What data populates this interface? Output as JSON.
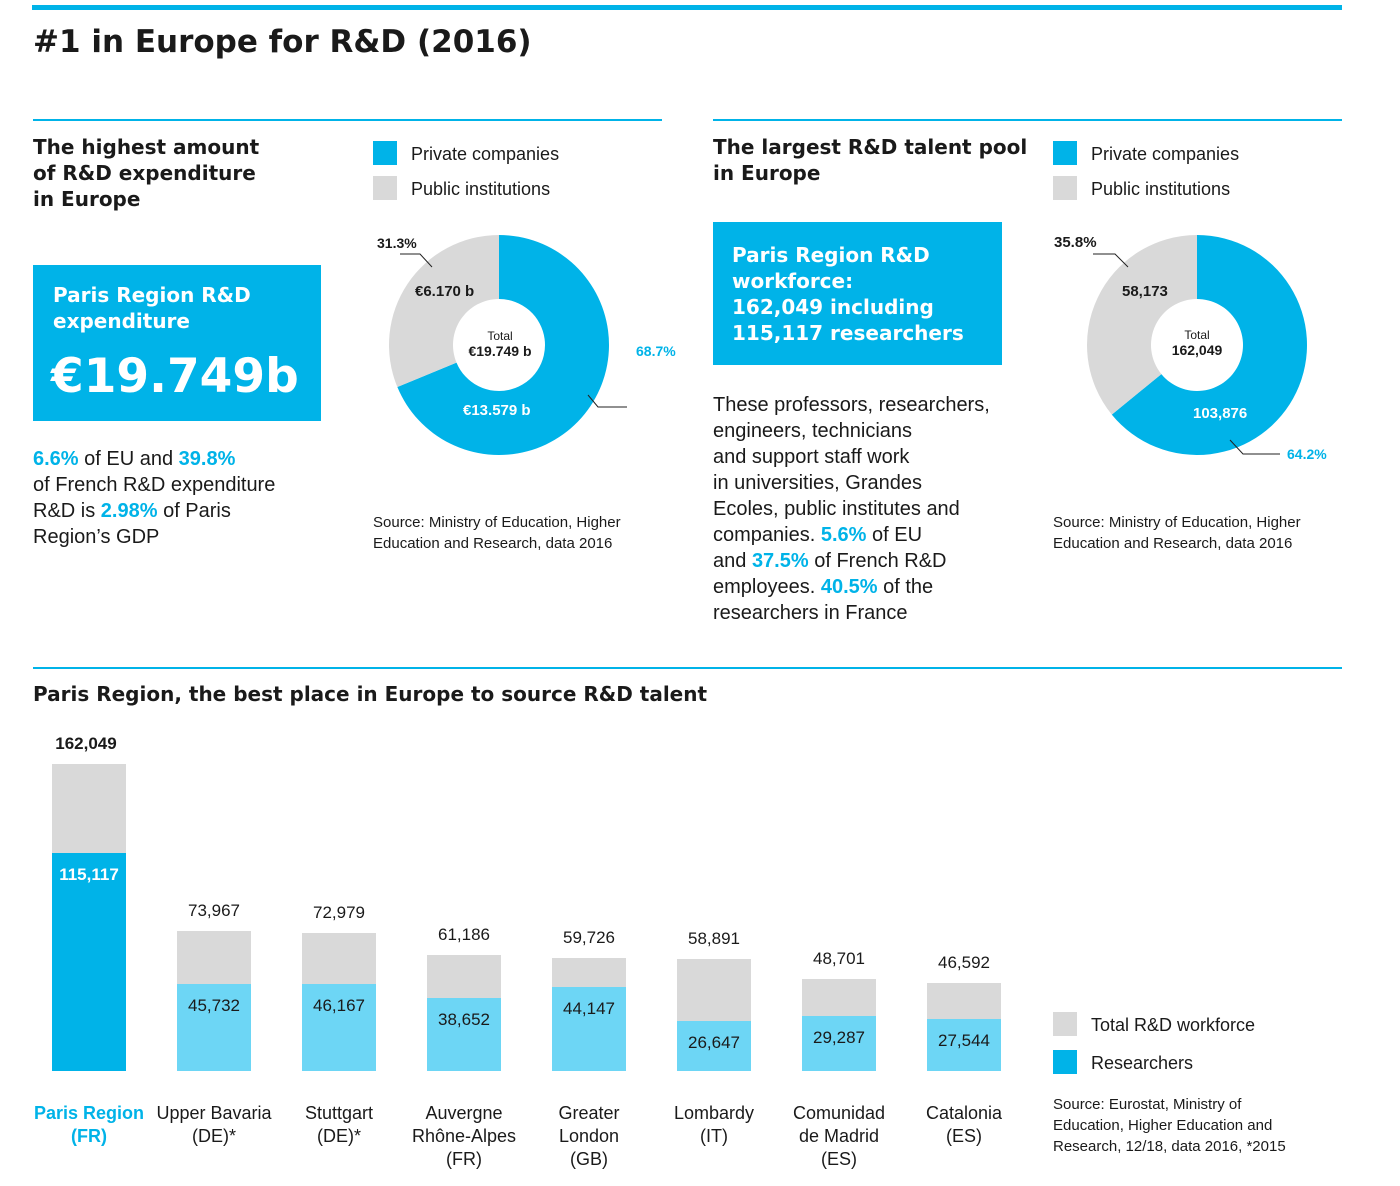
{
  "title": "#1 in Europe for R&D (2016)",
  "colors": {
    "accent": "#00b3e8",
    "light_blue": "#6dd6f5",
    "grey": "#d9d9d9"
  },
  "expenditure": {
    "heading": [
      "The highest amount",
      "of R&D expenditure",
      "in Europe"
    ],
    "box_label": [
      "Paris Region R&D",
      "expenditure"
    ],
    "box_value": "€19.749b",
    "stats": {
      "p1": "6.6%",
      "t1": " of EU and ",
      "p2": "39.8%",
      "t2": "of French R&D expenditure",
      "t3": "R&D is ",
      "p3": "2.98%",
      "t4": " of Paris",
      "t5": "Region’s GDP"
    },
    "legend": [
      "Private companies",
      "Public institutions"
    ],
    "donut": {
      "total_label": "Total",
      "total_value": "€19.749 b",
      "private_value": "€13.579 b",
      "public_value": "€6.170 b",
      "private_pct": "68.7%",
      "public_pct": "31.3%"
    },
    "source": [
      "Source: Ministry of Education, Higher",
      "Education and Research, data 2016"
    ]
  },
  "talent": {
    "heading": [
      "The largest R&D talent pool",
      "in Europe"
    ],
    "box": [
      "Paris Region R&D",
      "workforce:",
      "162,049 including",
      "115,117 researchers"
    ],
    "text": {
      "l1": "These professors, researchers,",
      "l2": "engineers, technicians",
      "l3": "and support staff work",
      "l4": "in universities, Grandes",
      "l5": "Ecoles, public institutes and",
      "l6a": "companies. ",
      "p1": "5.6%",
      "l6b": " of EU",
      "l7a": "and ",
      "p2": "37.5%",
      "l7b": " of French R&D",
      "l8a": "employees. ",
      "p3": "40.5%",
      "l8b": " of the",
      "l9": "researchers in France"
    },
    "legend": [
      "Private companies",
      "Public institutions"
    ],
    "donut": {
      "total_label": "Total",
      "total_value": "162,049",
      "private_value": "103,876",
      "public_value": "58,173",
      "private_pct": "64.2%",
      "public_pct": "35.8%"
    },
    "source": [
      "Source: Ministry of Education, Higher",
      "Education and Research, data 2016"
    ]
  },
  "bars_section": {
    "heading": "Paris Region, the best place in Europe to source R&D talent",
    "legend": [
      "Total R&D workforce",
      "Researchers"
    ],
    "source": [
      "Source: Eurostat, Ministry of",
      "Education, Higher Education and",
      "Research, 12/18, data 2016, *2015"
    ]
  },
  "chart_data": [
    {
      "type": "pie",
      "title": "The highest amount of R&D expenditure in Europe",
      "categories": [
        "Private companies",
        "Public institutions"
      ],
      "values": [
        13.579,
        6.17
      ],
      "percentages": [
        68.7,
        31.3
      ],
      "unit": "€ b",
      "total": 19.749
    },
    {
      "type": "pie",
      "title": "The largest R&D talent pool in Europe",
      "categories": [
        "Private companies",
        "Public institutions"
      ],
      "values": [
        103876,
        58173
      ],
      "percentages": [
        64.2,
        35.8
      ],
      "total": 162049
    },
    {
      "type": "bar",
      "title": "Paris Region, the best place in Europe to source R&D talent",
      "categories": [
        [
          "Paris Region",
          "(FR)"
        ],
        [
          "Upper Bavaria",
          "(DE)*"
        ],
        [
          "Stuttgart",
          "(DE)*"
        ],
        [
          "Auvergne",
          "Rhône-Alpes",
          "(FR)"
        ],
        [
          "Greater",
          "London",
          "(GB)"
        ],
        [
          "Lombardy",
          "(IT)"
        ],
        [
          "Comunidad",
          "de Madrid",
          "(ES)"
        ],
        [
          "Catalonia",
          "(ES)"
        ]
      ],
      "total_labels": [
        "162,049",
        "73,967",
        "72,979",
        "61,186",
        "59,726",
        "58,891",
        "48,701",
        "46,592"
      ],
      "researcher_labels": [
        "115,117",
        "45,732",
        "46,167",
        "38,652",
        "44,147",
        "26,647",
        "29,287",
        "27,544"
      ],
      "series": [
        {
          "name": "Total R&D workforce",
          "values": [
            162049,
            73967,
            72979,
            61186,
            59726,
            58891,
            48701,
            46592
          ]
        },
        {
          "name": "Researchers",
          "values": [
            115117,
            45732,
            46167,
            38652,
            44147,
            26647,
            29287,
            27544
          ]
        }
      ],
      "legend": "bottom-right"
    }
  ]
}
